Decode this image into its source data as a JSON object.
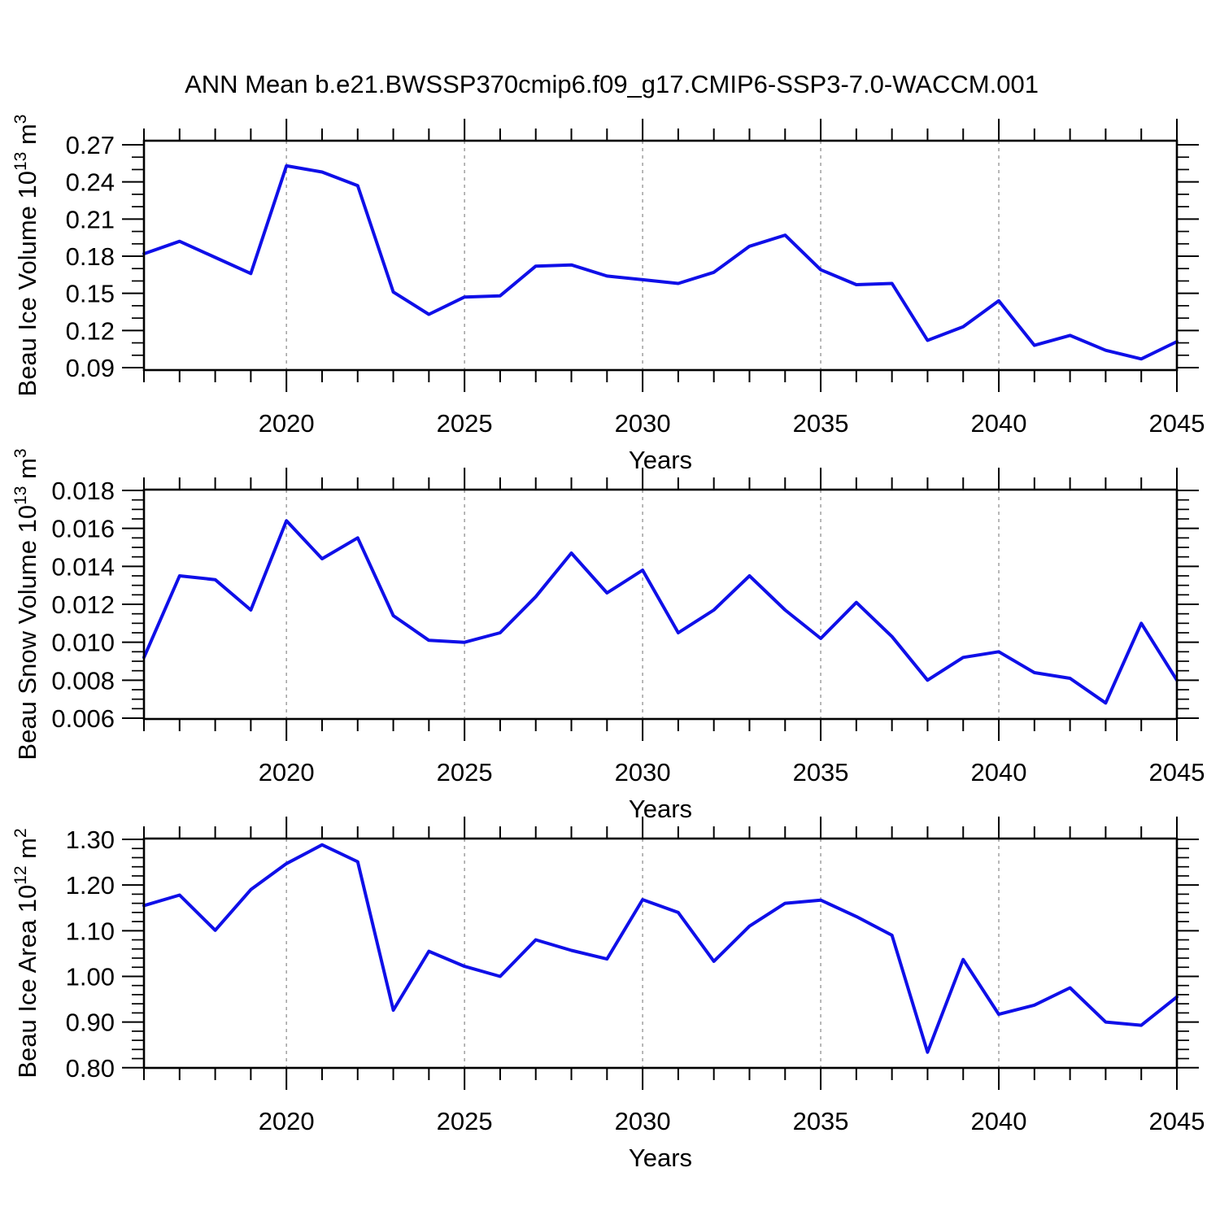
{
  "title": "ANN Mean b.e21.BWSSP370cmip6.f09_g17.CMIP6-SSP3-7.0-WACCM.001",
  "colors": {
    "line": "#0f0fe8",
    "axis": "#000000",
    "grid": "#999999",
    "background": "#ffffff"
  },
  "x_axis": {
    "label": "Years",
    "tick_labels": [
      "2020",
      "2025",
      "2030",
      "2035",
      "2040",
      "2045"
    ]
  },
  "chart_data": [
    {
      "type": "line",
      "name": "beau-ice-volume",
      "ylabel": "Beau Ice Volume 10^13 m^3",
      "ylabel_parts": [
        {
          "t": "Beau Ice Volume 10"
        },
        {
          "t": "13",
          "sup": true
        },
        {
          "t": " m"
        },
        {
          "t": "3",
          "sup": true
        }
      ],
      "xlabel": "Years",
      "x": [
        2016,
        2017,
        2018,
        2019,
        2020,
        2021,
        2022,
        2023,
        2024,
        2025,
        2026,
        2027,
        2028,
        2029,
        2030,
        2031,
        2032,
        2033,
        2034,
        2035,
        2036,
        2037,
        2038,
        2039,
        2040,
        2041,
        2042,
        2043,
        2044,
        2045
      ],
      "values": [
        0.182,
        0.192,
        0.179,
        0.166,
        0.253,
        0.248,
        0.237,
        0.151,
        0.133,
        0.147,
        0.148,
        0.172,
        0.173,
        0.164,
        0.161,
        0.158,
        0.167,
        0.188,
        0.197,
        0.169,
        0.157,
        0.158,
        0.112,
        0.123,
        0.144,
        0.108,
        0.116,
        0.104,
        0.097,
        0.111
      ],
      "xlim": [
        2016,
        2045
      ],
      "ylim": [
        0.08803,
        0.27329
      ],
      "xticks": [
        2020,
        2025,
        2030,
        2035,
        2040,
        2045
      ],
      "x_minor_step": 1,
      "yticks": [
        0.09,
        0.12,
        0.15,
        0.18,
        0.21,
        0.24,
        0.27
      ],
      "ytick_labels": [
        "0.09",
        "0.12",
        "0.15",
        "0.18",
        "0.21",
        "0.24",
        "0.27"
      ],
      "y_minor_step": 0.01,
      "grid_x": [
        2020,
        2025,
        2030,
        2035,
        2040
      ],
      "grid_on": true,
      "legend": null
    },
    {
      "type": "line",
      "name": "beau-snow-volume",
      "ylabel": "Beau Snow Volume 10^13 m^3",
      "ylabel_parts": [
        {
          "t": "Beau Snow Volume 10"
        },
        {
          "t": "13",
          "sup": true
        },
        {
          "t": " m"
        },
        {
          "t": "3",
          "sup": true
        }
      ],
      "xlabel": "Years",
      "x": [
        2016,
        2017,
        2018,
        2019,
        2020,
        2021,
        2022,
        2023,
        2024,
        2025,
        2026,
        2027,
        2028,
        2029,
        2030,
        2031,
        2032,
        2033,
        2034,
        2035,
        2036,
        2037,
        2038,
        2039,
        2040,
        2041,
        2042,
        2043,
        2044,
        2045
      ],
      "values": [
        0.0092,
        0.0135,
        0.0133,
        0.0117,
        0.0164,
        0.0144,
        0.0155,
        0.0114,
        0.0101,
        0.01,
        0.0105,
        0.0124,
        0.0147,
        0.0126,
        0.0138,
        0.0105,
        0.0117,
        0.0135,
        0.0117,
        0.0102,
        0.0121,
        0.0103,
        0.008,
        0.0092,
        0.0095,
        0.0084,
        0.0081,
        0.0068,
        0.011,
        0.008
      ],
      "xlim": [
        2016,
        2045
      ],
      "ylim": [
        0.0059571,
        0.0180429
      ],
      "xticks": [
        2020,
        2025,
        2030,
        2035,
        2040,
        2045
      ],
      "x_minor_step": 1,
      "yticks": [
        0.006,
        0.008,
        0.01,
        0.012,
        0.014,
        0.016,
        0.018
      ],
      "ytick_labels": [
        "0.006",
        "0.008",
        "0.010",
        "0.012",
        "0.014",
        "0.016",
        "0.018"
      ],
      "y_minor_step": 0.0005,
      "grid_x": [
        2020,
        2025,
        2030,
        2035,
        2040
      ],
      "grid_on": true,
      "legend": null
    },
    {
      "type": "line",
      "name": "beau-ice-area",
      "ylabel": "Beau Ice Area 10^12 m^2",
      "ylabel_parts": [
        {
          "t": "Beau Ice Area 10"
        },
        {
          "t": "12",
          "sup": true
        },
        {
          "t": " m"
        },
        {
          "t": "2",
          "sup": true
        }
      ],
      "xlabel": "Years",
      "x": [
        2016,
        2017,
        2018,
        2019,
        2020,
        2021,
        2022,
        2023,
        2024,
        2025,
        2026,
        2027,
        2028,
        2029,
        2030,
        2031,
        2032,
        2033,
        2034,
        2035,
        2036,
        2037,
        2038,
        2039,
        2040,
        2041,
        2042,
        2043,
        2044,
        2045
      ],
      "values": [
        1.155,
        1.178,
        1.101,
        1.19,
        1.247,
        1.288,
        1.251,
        0.926,
        1.055,
        1.022,
        1.0,
        1.08,
        1.057,
        1.038,
        1.168,
        1.14,
        1.033,
        1.11,
        1.16,
        1.167,
        1.131,
        1.09,
        0.834,
        1.037,
        0.917,
        0.937,
        0.975,
        0.9,
        0.893,
        0.955
      ],
      "xlim": [
        2016,
        2045
      ],
      "ylim": [
        0.7996,
        1.3018
      ],
      "xticks": [
        2020,
        2025,
        2030,
        2035,
        2040,
        2045
      ],
      "x_minor_step": 1,
      "yticks": [
        0.8,
        0.9,
        1.0,
        1.1,
        1.2,
        1.3
      ],
      "ytick_labels": [
        "0.80",
        "0.90",
        "1.00",
        "1.10",
        "1.20",
        "1.30"
      ],
      "y_minor_step": 0.02,
      "grid_x": [
        2020,
        2025,
        2030,
        2035,
        2040
      ],
      "grid_on": true,
      "legend": null
    }
  ]
}
